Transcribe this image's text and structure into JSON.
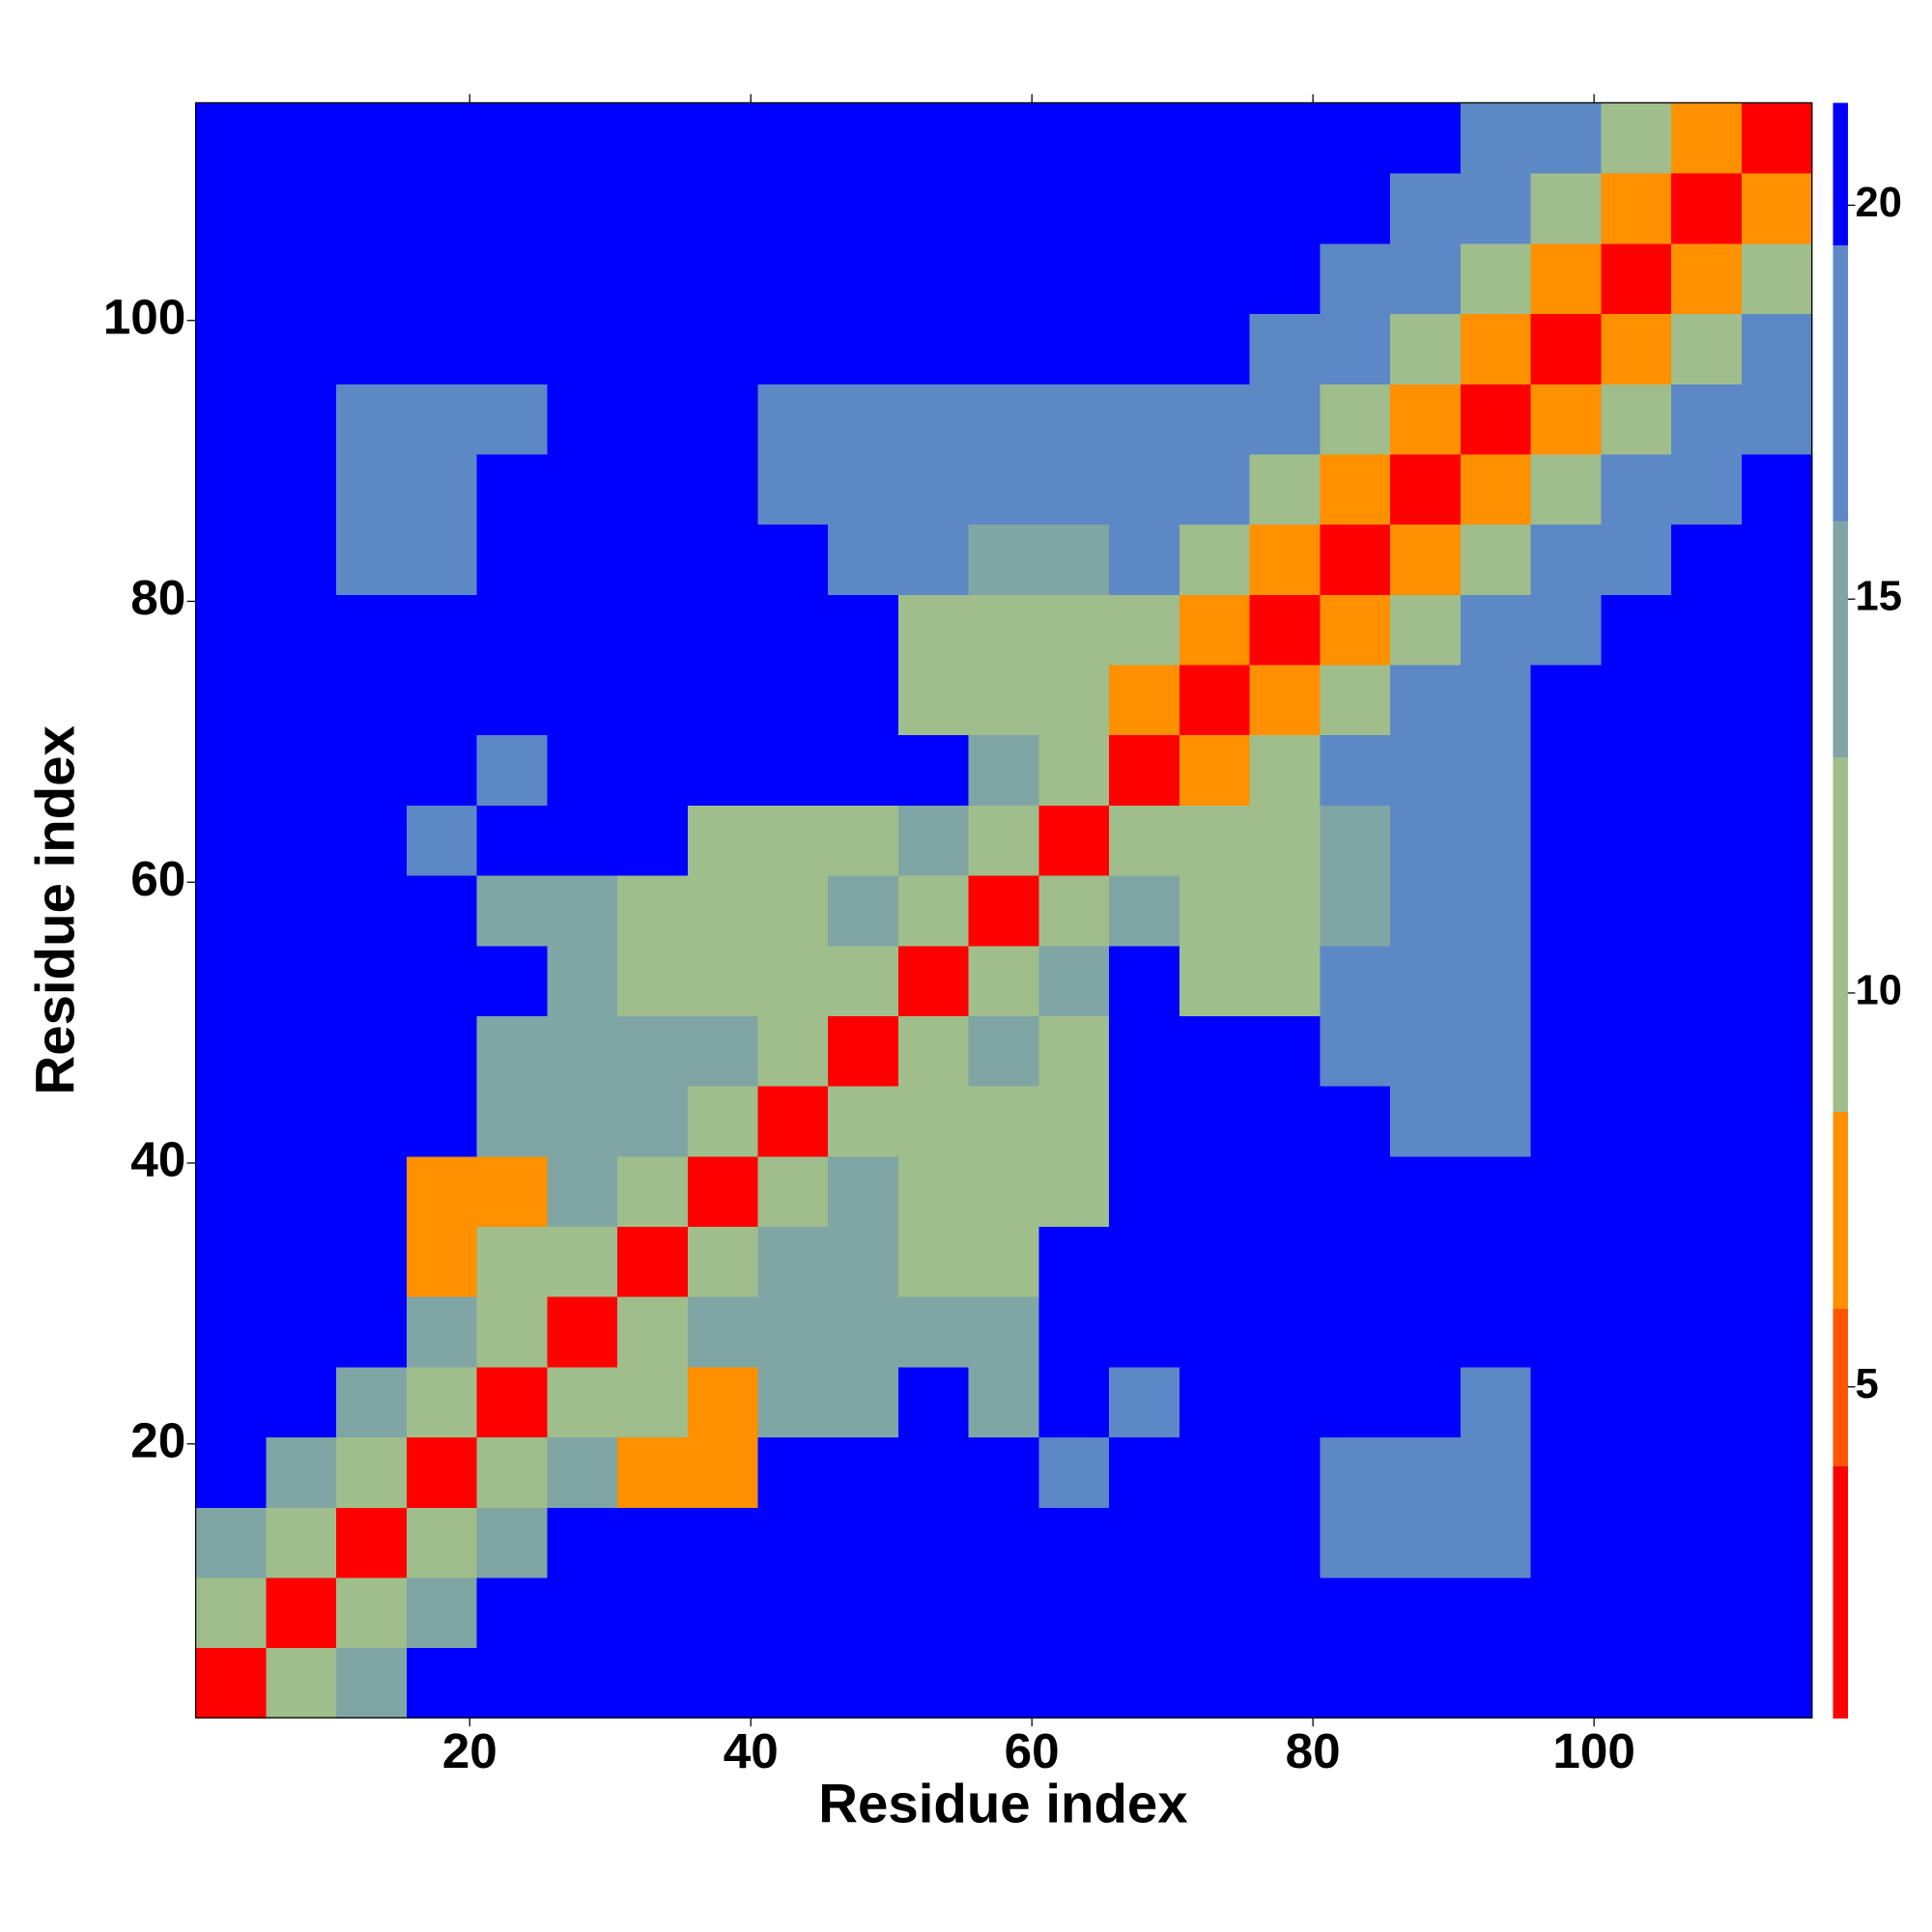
{
  "chart_data": {
    "type": "heatmap",
    "xlabel": "Residue index",
    "ylabel": "Residue index",
    "xbins": [
      0.5,
      5.5,
      10.5,
      15.5,
      20.5,
      25.5,
      30.5,
      35.5,
      40.5,
      45.5,
      50.5,
      55.5,
      60.5,
      65.5,
      70.5,
      75.5,
      80.5,
      85.5,
      90.5,
      95.5,
      100.5,
      105.5,
      110.5,
      115.5
    ],
    "ybins": [
      0.5,
      5.5,
      10.5,
      15.5,
      20.5,
      25.5,
      30.5,
      35.5,
      40.5,
      45.5,
      50.5,
      55.5,
      60.5,
      65.5,
      70.5,
      75.5,
      80.5,
      85.5,
      90.5,
      95.5,
      100.5,
      105.5,
      110.5,
      115.5
    ],
    "xlim": [
      0.5,
      115.5
    ],
    "ylim": [
      0.5,
      115.5
    ],
    "xticks": [
      20,
      40,
      60,
      80,
      100
    ],
    "yticks": [
      20,
      40,
      60,
      80,
      100
    ],
    "clim": [
      0.8,
      21.3
    ],
    "cticks": [
      5,
      10,
      15,
      20
    ],
    "levels": [
      0.8,
      4,
      6,
      8.5,
      13,
      16,
      19.5,
      21.3
    ],
    "colors": [
      "#ff0000",
      "#ff5500",
      "#ff9000",
      "#9fbe8c",
      "#80a5a5",
      "#5c88c6",
      "#0000ff"
    ],
    "values": [
      [
        3,
        9,
        15,
        21,
        21,
        21,
        21,
        21,
        21,
        21,
        21,
        21,
        21,
        21,
        21,
        21,
        21,
        21,
        21,
        21,
        21,
        21,
        21
      ],
      [
        9,
        3,
        9,
        15,
        21,
        21,
        21,
        21,
        21,
        21,
        21,
        21,
        21,
        21,
        21,
        21,
        21,
        21,
        21,
        21,
        21,
        21,
        21
      ],
      [
        15,
        9,
        3,
        9,
        15,
        21,
        21,
        21,
        21,
        21,
        21,
        21,
        21,
        21,
        21,
        21,
        18,
        18,
        18,
        21,
        21,
        21,
        21
      ],
      [
        21,
        15,
        9,
        3,
        9,
        15,
        6,
        7,
        21,
        21,
        21,
        21,
        18,
        21,
        21,
        21,
        18,
        18,
        18,
        21,
        21,
        21,
        21
      ],
      [
        21,
        21,
        15,
        9,
        3,
        9,
        9,
        6,
        14,
        14,
        21,
        14,
        21,
        18,
        21,
        21,
        21,
        21,
        18,
        21,
        21,
        21,
        21
      ],
      [
        21,
        21,
        21,
        15,
        9,
        3,
        9,
        15,
        14,
        14,
        14,
        14,
        21,
        21,
        21,
        21,
        21,
        21,
        21,
        21,
        21,
        21,
        21
      ],
      [
        21,
        21,
        21,
        6,
        9,
        9,
        3,
        9,
        13,
        14,
        12,
        12,
        21,
        21,
        21,
        21,
        21,
        21,
        21,
        21,
        21,
        21,
        21
      ],
      [
        21,
        21,
        21,
        7,
        6,
        15,
        9,
        3,
        9,
        15,
        12,
        12,
        12,
        21,
        21,
        21,
        21,
        21,
        21,
        21,
        21,
        21,
        21
      ],
      [
        21,
        21,
        21,
        21,
        14,
        14,
        13,
        9,
        3,
        9,
        12,
        12,
        12,
        21,
        21,
        21,
        21,
        17,
        17,
        21,
        21,
        21,
        21
      ],
      [
        21,
        21,
        21,
        21,
        14,
        14,
        14,
        15,
        9,
        3,
        9,
        15,
        12,
        21,
        21,
        21,
        17,
        17,
        17,
        21,
        21,
        21,
        21
      ],
      [
        21,
        21,
        21,
        21,
        21,
        14,
        12,
        12,
        12,
        9,
        3,
        9,
        15,
        21,
        12,
        12,
        17,
        17,
        17,
        21,
        21,
        21,
        21
      ],
      [
        21,
        21,
        21,
        21,
        14,
        14,
        12,
        12,
        12,
        15,
        9,
        3,
        9,
        15,
        12,
        12,
        14,
        17,
        17,
        21,
        21,
        21,
        21
      ],
      [
        21,
        21,
        21,
        18,
        21,
        21,
        21,
        12,
        12,
        12,
        15,
        9,
        3,
        9,
        11,
        12,
        14,
        17,
        17,
        21,
        21,
        21,
        21
      ],
      [
        21,
        21,
        21,
        21,
        18,
        21,
        21,
        21,
        21,
        21,
        21,
        15,
        9,
        3,
        7,
        11,
        16,
        17,
        17,
        21,
        21,
        21,
        21
      ],
      [
        21,
        21,
        21,
        21,
        21,
        21,
        21,
        21,
        21,
        21,
        12,
        12,
        11,
        7,
        3,
        7,
        11,
        16,
        19,
        21,
        21,
        21,
        21
      ],
      [
        21,
        21,
        21,
        21,
        21,
        21,
        21,
        21,
        21,
        21,
        12,
        12,
        12,
        11,
        7,
        3,
        7,
        11,
        16,
        19,
        21,
        21,
        21
      ],
      [
        21,
        21,
        18,
        18,
        21,
        21,
        21,
        21,
        21,
        17,
        17,
        14,
        14,
        16,
        11,
        7,
        3,
        7,
        11,
        16,
        19,
        21,
        21
      ],
      [
        21,
        21,
        18,
        18,
        21,
        21,
        21,
        21,
        17,
        17,
        17,
        17,
        17,
        17,
        16,
        11,
        7,
        3,
        7,
        11,
        16,
        19,
        21
      ],
      [
        21,
        21,
        18,
        18,
        18,
        21,
        21,
        21,
        17,
        17,
        17,
        17,
        17,
        17,
        19,
        16,
        11,
        7,
        3,
        7,
        11,
        16,
        19
      ],
      [
        21,
        21,
        21,
        21,
        21,
        21,
        21,
        21,
        21,
        21,
        21,
        21,
        21,
        21,
        21,
        19,
        16,
        11,
        7,
        3,
        7,
        11,
        16
      ],
      [
        21,
        21,
        21,
        21,
        21,
        21,
        21,
        21,
        21,
        21,
        21,
        21,
        21,
        21,
        21,
        21,
        19,
        16,
        11,
        7,
        3,
        7,
        11
      ],
      [
        21,
        21,
        21,
        21,
        21,
        21,
        21,
        21,
        21,
        21,
        21,
        21,
        21,
        21,
        21,
        21,
        21,
        19,
        16,
        11,
        7,
        3,
        7
      ],
      [
        21,
        21,
        21,
        21,
        21,
        21,
        21,
        21,
        21,
        21,
        21,
        21,
        21,
        21,
        21,
        21,
        21,
        21,
        19,
        16,
        11,
        7,
        3
      ]
    ]
  }
}
